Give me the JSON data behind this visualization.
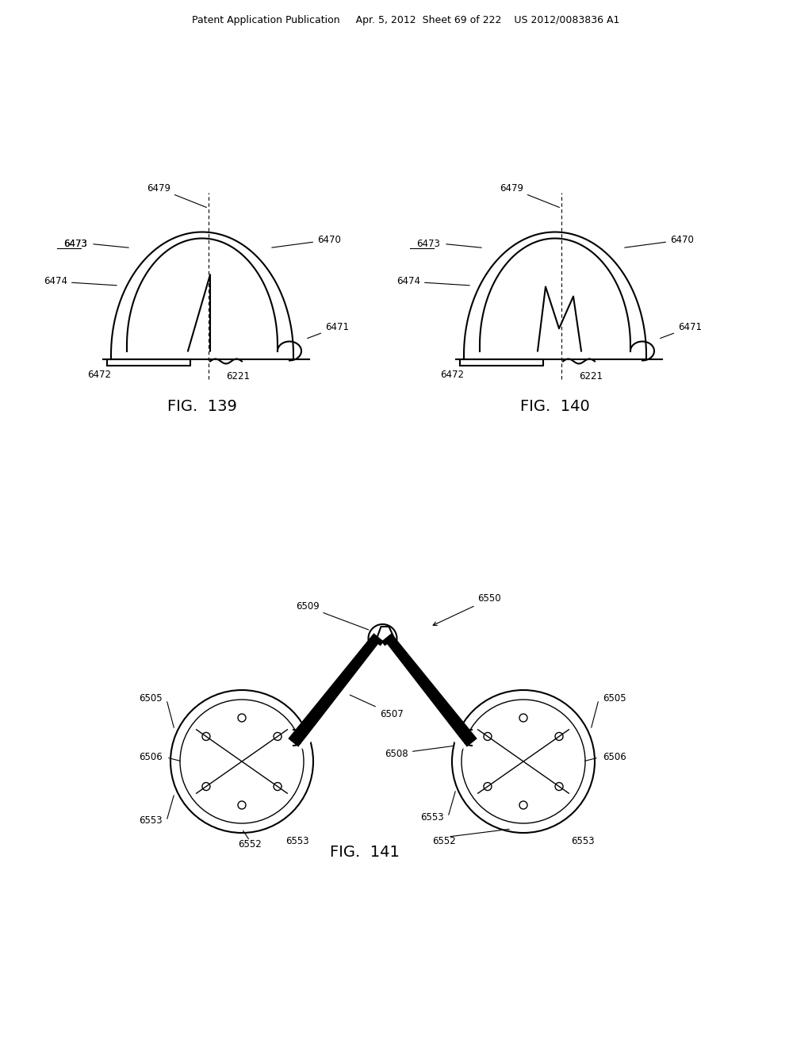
{
  "bg_color": "#ffffff",
  "header_text": "Patent Application Publication     Apr. 5, 2012  Sheet 69 of 222    US 2012/0083836 A1",
  "fig139_title": "FIG.  139",
  "fig140_title": "FIG.  140",
  "fig141_title": "FIG.  141",
  "text_color": "#000000",
  "line_color": "#000000",
  "header_fontsize": 9,
  "fig_label_fontsize": 14,
  "annot_fontsize": 8.5
}
